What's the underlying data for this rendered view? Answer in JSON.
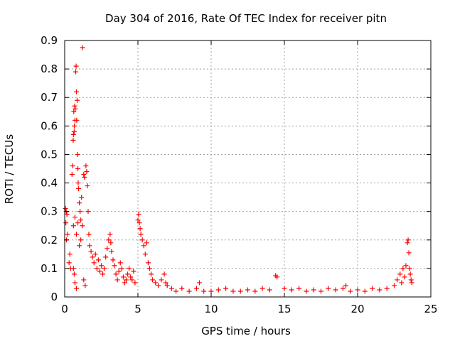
{
  "chart_data": {
    "type": "scatter",
    "title": "Day 304 of 2016, Rate Of TEC Index for receiver pitn",
    "xlabel": "GPS time / hours",
    "ylabel": "ROTI / TECUs",
    "xlim": [
      0,
      25
    ],
    "ylim": [
      0,
      0.9
    ],
    "xticks": [
      0,
      5,
      10,
      15,
      20,
      25
    ],
    "yticks": [
      0,
      0.1,
      0.2,
      0.3,
      0.4,
      0.5,
      0.6,
      0.7,
      0.8,
      0.9
    ],
    "grid": true,
    "marker": "+",
    "series_color": "#ff0000",
    "series": [
      {
        "name": "ROTI",
        "points": [
          [
            0.05,
            0.31
          ],
          [
            0.1,
            0.3
          ],
          [
            0.15,
            0.29
          ],
          [
            0.2,
            0.22
          ],
          [
            0.08,
            0.26
          ],
          [
            0.12,
            0.2
          ],
          [
            0.3,
            0.12
          ],
          [
            0.35,
            0.15
          ],
          [
            0.4,
            0.1
          ],
          [
            0.5,
            0.43
          ],
          [
            0.55,
            0.46
          ],
          [
            0.6,
            0.57
          ],
          [
            0.62,
            0.65
          ],
          [
            0.65,
            0.58
          ],
          [
            0.68,
            0.67
          ],
          [
            0.72,
            0.66
          ],
          [
            0.75,
            0.79
          ],
          [
            0.78,
            0.81
          ],
          [
            0.8,
            0.72
          ],
          [
            0.82,
            0.62
          ],
          [
            0.85,
            0.69
          ],
          [
            0.88,
            0.5
          ],
          [
            0.9,
            0.45
          ],
          [
            0.92,
            0.4
          ],
          [
            0.7,
            0.62
          ],
          [
            0.66,
            0.6
          ],
          [
            0.58,
            0.55
          ],
          [
            0.95,
            0.38
          ],
          [
            1.0,
            0.33
          ],
          [
            1.05,
            0.3
          ],
          [
            1.1,
            0.27
          ],
          [
            1.15,
            0.35
          ],
          [
            1.2,
            0.25
          ],
          [
            1.22,
            0.875
          ],
          [
            1.3,
            0.43
          ],
          [
            1.35,
            0.42
          ],
          [
            1.45,
            0.46
          ],
          [
            1.5,
            0.44
          ],
          [
            1.55,
            0.39
          ],
          [
            1.6,
            0.3
          ],
          [
            1.65,
            0.22
          ],
          [
            1.7,
            0.18
          ],
          [
            1.8,
            0.16
          ],
          [
            1.9,
            0.14
          ],
          [
            2.0,
            0.12
          ],
          [
            2.1,
            0.15
          ],
          [
            2.2,
            0.1
          ],
          [
            2.3,
            0.13
          ],
          [
            2.4,
            0.09
          ],
          [
            2.5,
            0.11
          ],
          [
            2.6,
            0.08
          ],
          [
            2.7,
            0.1
          ],
          [
            0.6,
            0.25
          ],
          [
            0.7,
            0.28
          ],
          [
            0.8,
            0.22
          ],
          [
            0.9,
            0.26
          ],
          [
            1.0,
            0.18
          ],
          [
            1.1,
            0.2
          ],
          [
            0.6,
            0.1
          ],
          [
            0.7,
            0.05
          ],
          [
            0.8,
            0.03
          ],
          [
            0.65,
            0.08
          ],
          [
            1.3,
            0.06
          ],
          [
            1.4,
            0.04
          ],
          [
            2.8,
            0.14
          ],
          [
            2.9,
            0.17
          ],
          [
            3.0,
            0.2
          ],
          [
            3.1,
            0.22
          ],
          [
            3.15,
            0.19
          ],
          [
            3.2,
            0.16
          ],
          [
            3.3,
            0.13
          ],
          [
            3.4,
            0.11
          ],
          [
            3.5,
            0.08
          ],
          [
            3.6,
            0.06
          ],
          [
            3.7,
            0.09
          ],
          [
            3.8,
            0.12
          ],
          [
            3.9,
            0.1
          ],
          [
            4.0,
            0.07
          ],
          [
            4.1,
            0.05
          ],
          [
            4.2,
            0.06
          ],
          [
            4.3,
            0.08
          ],
          [
            4.4,
            0.1
          ],
          [
            4.5,
            0.07
          ],
          [
            4.6,
            0.06
          ],
          [
            4.7,
            0.09
          ],
          [
            4.8,
            0.05
          ],
          [
            5.0,
            0.27
          ],
          [
            5.05,
            0.29
          ],
          [
            5.1,
            0.26
          ],
          [
            5.15,
            0.24
          ],
          [
            5.2,
            0.22
          ],
          [
            5.3,
            0.2
          ],
          [
            5.4,
            0.18
          ],
          [
            5.5,
            0.15
          ],
          [
            5.6,
            0.19
          ],
          [
            5.7,
            0.12
          ],
          [
            5.8,
            0.1
          ],
          [
            5.9,
            0.08
          ],
          [
            6.0,
            0.06
          ],
          [
            6.2,
            0.05
          ],
          [
            6.4,
            0.04
          ],
          [
            6.6,
            0.06
          ],
          [
            6.8,
            0.08
          ],
          [
            6.9,
            0.05
          ],
          [
            7.0,
            0.04
          ],
          [
            7.3,
            0.03
          ],
          [
            7.6,
            0.02
          ],
          [
            8.0,
            0.03
          ],
          [
            8.5,
            0.02
          ],
          [
            9.0,
            0.03
          ],
          [
            9.2,
            0.05
          ],
          [
            9.5,
            0.02
          ],
          [
            10.0,
            0.02
          ],
          [
            10.5,
            0.025
          ],
          [
            11.0,
            0.03
          ],
          [
            11.5,
            0.02
          ],
          [
            12.0,
            0.02
          ],
          [
            12.5,
            0.025
          ],
          [
            13.0,
            0.02
          ],
          [
            13.5,
            0.03
          ],
          [
            14.0,
            0.025
          ],
          [
            14.4,
            0.075
          ],
          [
            14.5,
            0.07
          ],
          [
            15.0,
            0.03
          ],
          [
            15.5,
            0.025
          ],
          [
            16.0,
            0.03
          ],
          [
            16.5,
            0.02
          ],
          [
            17.0,
            0.025
          ],
          [
            17.5,
            0.02
          ],
          [
            18.0,
            0.03
          ],
          [
            18.5,
            0.025
          ],
          [
            19.0,
            0.03
          ],
          [
            19.2,
            0.04
          ],
          [
            19.5,
            0.02
          ],
          [
            20.0,
            0.025
          ],
          [
            20.5,
            0.02
          ],
          [
            21.0,
            0.03
          ],
          [
            21.5,
            0.025
          ],
          [
            22.0,
            0.03
          ],
          [
            22.5,
            0.04
          ],
          [
            22.7,
            0.06
          ],
          [
            22.9,
            0.08
          ],
          [
            23.0,
            0.05
          ],
          [
            23.1,
            0.1
          ],
          [
            23.2,
            0.07
          ],
          [
            23.3,
            0.11
          ],
          [
            23.4,
            0.19
          ],
          [
            23.45,
            0.2
          ],
          [
            23.5,
            0.155
          ],
          [
            23.55,
            0.1
          ],
          [
            23.6,
            0.08
          ],
          [
            23.65,
            0.06
          ],
          [
            23.7,
            0.05
          ]
        ]
      }
    ]
  }
}
